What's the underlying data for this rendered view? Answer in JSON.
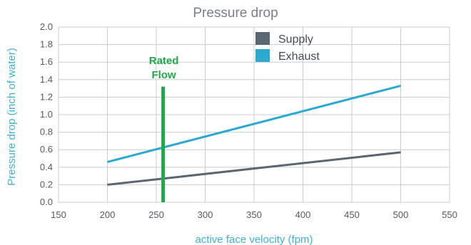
{
  "chart_data": {
    "type": "line",
    "title": "Pressure drop",
    "xlabel": "active face velocity (fpm)",
    "ylabel": "Pressure drop (inch of water)",
    "xlim": [
      150,
      550
    ],
    "ylim": [
      0.0,
      2.0
    ],
    "xticks": [
      "150",
      "200",
      "250",
      "300",
      "350",
      "400",
      "450",
      "500",
      "550"
    ],
    "yticks": [
      "0.0",
      "0.2",
      "0.4",
      "0.6",
      "0.8",
      "1.0",
      "1.2",
      "1.4",
      "1.6",
      "1.8",
      "2.0"
    ],
    "grid": true,
    "legend_position": "top-center",
    "series": [
      {
        "name": "Supply",
        "color": "#5a6672",
        "x": [
          200,
          500
        ],
        "y": [
          0.2,
          0.57
        ]
      },
      {
        "name": "Exhaust",
        "color": "#2ba9cf",
        "x": [
          200,
          500
        ],
        "y": [
          0.46,
          1.33
        ]
      }
    ],
    "annotation": {
      "text_line1": "Rated",
      "text_line2": "Flow",
      "x": 257,
      "y_top": 1.32,
      "color": "#1fa84a"
    }
  }
}
